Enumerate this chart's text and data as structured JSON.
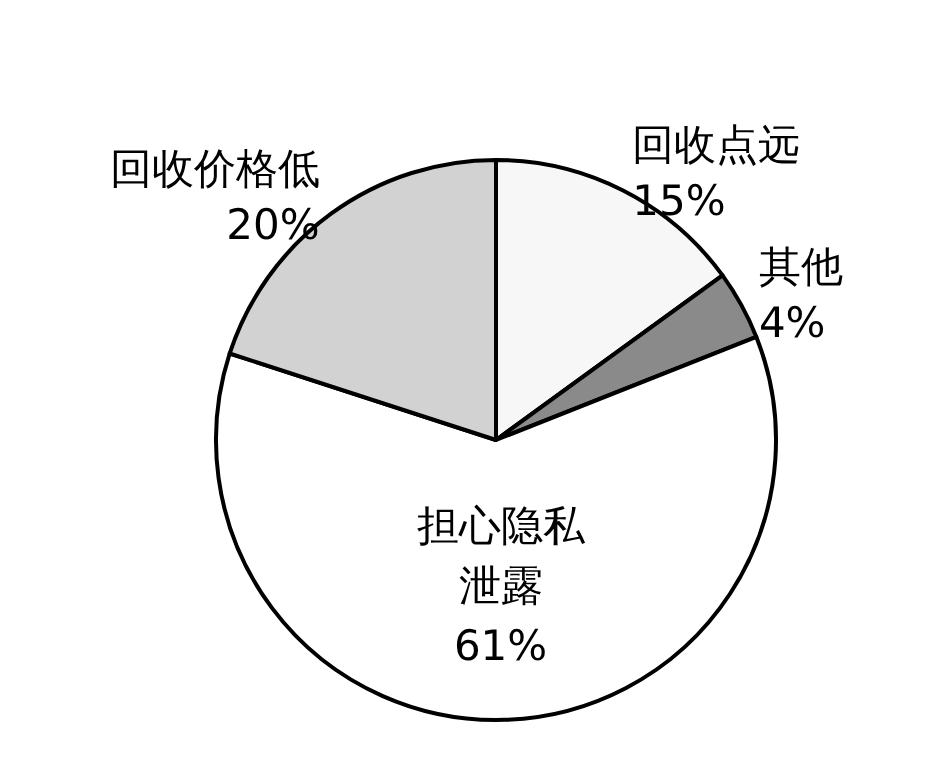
{
  "chart_data": {
    "type": "pie",
    "categories": [
      "回收点远",
      "其他",
      "担心隐私泄露",
      "回收价格低"
    ],
    "values": [
      15,
      4,
      61,
      20
    ],
    "value_labels": [
      "15%",
      "4%",
      "61%",
      "20%"
    ],
    "colors": [
      "#f7f7f7",
      "#8a8a8a",
      "#ffffff",
      "#d2d2d2"
    ],
    "legend": false
  }
}
